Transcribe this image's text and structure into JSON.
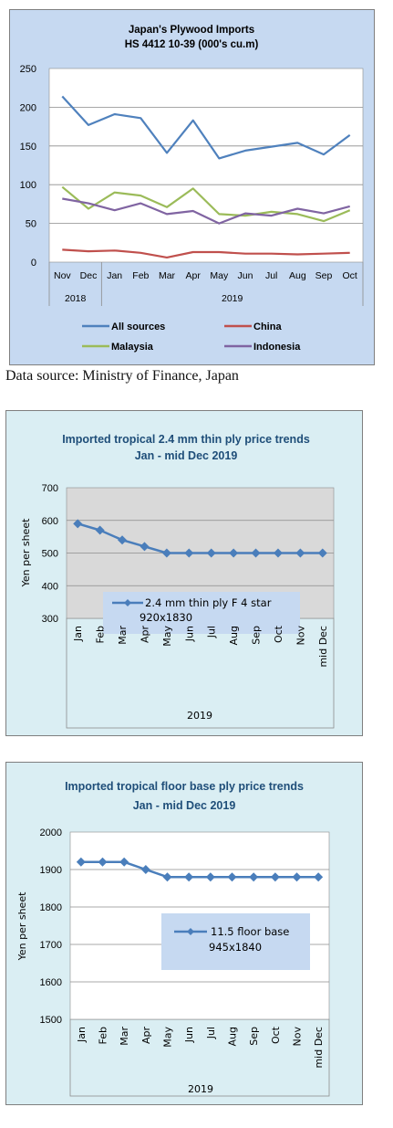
{
  "source_note": "Data source: Ministry of Finance, Japan",
  "chart_data": [
    {
      "type": "line",
      "title": "Japan's Plywood Imports",
      "subtitle": "HS 4412 10-39  (000's cu.m)",
      "categories": [
        "Nov",
        "Dec",
        "Jan",
        "Feb",
        "Mar",
        "Apr",
        "May",
        "Jun",
        "Jul",
        "Aug",
        "Sep",
        "Oct"
      ],
      "year_groups": [
        {
          "label": "2018",
          "span": 2
        },
        {
          "label": "2019",
          "span": 10
        }
      ],
      "ylim": [
        0,
        250
      ],
      "yticks": [
        0,
        50,
        100,
        150,
        200,
        250
      ],
      "grid": true,
      "legend_position": "bottom",
      "series": [
        {
          "name": "All sources",
          "color": "#4F81BD",
          "values": [
            214,
            177,
            191,
            186,
            141,
            183,
            134,
            144,
            149,
            154,
            139,
            164
          ]
        },
        {
          "name": "China",
          "color": "#C0504D",
          "values": [
            16,
            14,
            15,
            12,
            6,
            13,
            13,
            11,
            11,
            10,
            11,
            12
          ]
        },
        {
          "name": "Malaysia",
          "color": "#9BBB59",
          "values": [
            97,
            69,
            90,
            86,
            71,
            95,
            62,
            60,
            65,
            62,
            53,
            67
          ]
        },
        {
          "name": "Indonesia",
          "color": "#8064A2",
          "values": [
            82,
            76,
            67,
            76,
            62,
            66,
            50,
            63,
            60,
            69,
            63,
            72
          ]
        }
      ]
    },
    {
      "type": "line",
      "title": "Imported tropical 2.4 mm thin ply price trends",
      "subtitle": "Jan - mid Dec 2019",
      "categories": [
        "Jan",
        "Feb",
        "Mar",
        "Apr",
        "May",
        "Jun",
        "Jul",
        "Aug",
        "Sep",
        "Oct",
        "Nov",
        "mid Dec"
      ],
      "xlabel": "2019",
      "ylabel": "Yen per sheet",
      "ylim": [
        300,
        700
      ],
      "yticks": [
        300,
        400,
        500,
        600,
        700
      ],
      "grid": true,
      "legend_position": "inside-bottom-center",
      "series": [
        {
          "name": "2.4 mm thin ply F 4 star 920x1830",
          "legend_lines": [
            "2.4 mm thin ply F 4 star",
            "920x1830"
          ],
          "color": "#4A7EBB",
          "values": [
            590,
            570,
            540,
            520,
            500,
            500,
            500,
            500,
            500,
            500,
            500,
            500
          ]
        }
      ]
    },
    {
      "type": "line",
      "title": "Imported tropical floor base ply price trends",
      "subtitle": "Jan - mid Dec 2019",
      "categories": [
        "Jan",
        "Feb",
        "Mar",
        "Apr",
        "May",
        "Jun",
        "Jul",
        "Aug",
        "Sep",
        "Oct",
        "Nov",
        "mid Dec"
      ],
      "xlabel": "2019",
      "ylabel": "Yen per sheet",
      "ylim": [
        1500,
        2000
      ],
      "yticks": [
        1500,
        1600,
        1700,
        1800,
        1900,
        2000
      ],
      "grid": true,
      "legend_position": "inside-bottom-right",
      "series": [
        {
          "name": "11.5 floor base 945x1840",
          "legend_lines": [
            "11.5 floor base",
            "945x1840"
          ],
          "color": "#4A7EBB",
          "values": [
            1920,
            1920,
            1920,
            1900,
            1880,
            1880,
            1880,
            1880,
            1880,
            1880,
            1880,
            1880
          ]
        }
      ]
    }
  ]
}
